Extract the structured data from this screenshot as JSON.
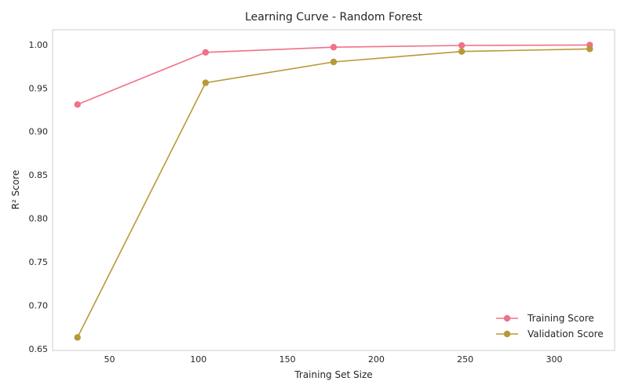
{
  "chart_data": {
    "type": "line",
    "title": "Learning Curve - Random Forest",
    "xlabel": "Training Set Size",
    "ylabel": "R² Score",
    "xlim": [
      18,
      334
    ],
    "ylim": [
      0.648,
      1.017
    ],
    "xticks": [
      50,
      100,
      150,
      200,
      250,
      300
    ],
    "yticks": [
      0.65,
      0.7,
      0.75,
      0.8,
      0.85,
      0.9,
      0.95,
      1.0
    ],
    "grid": false,
    "legend_position": "bottom-right",
    "series": [
      {
        "name": "Training Score",
        "color": "#f0718a",
        "marker": "circle",
        "x": [
          32,
          104,
          176,
          248,
          320
        ],
        "y": [
          0.931,
          0.991,
          0.997,
          0.999,
          0.9995
        ]
      },
      {
        "name": "Validation Score",
        "color": "#b8993a",
        "marker": "circle",
        "x": [
          32,
          104,
          176,
          248,
          320
        ],
        "y": [
          0.663,
          0.956,
          0.98,
          0.992,
          0.995
        ]
      }
    ]
  }
}
